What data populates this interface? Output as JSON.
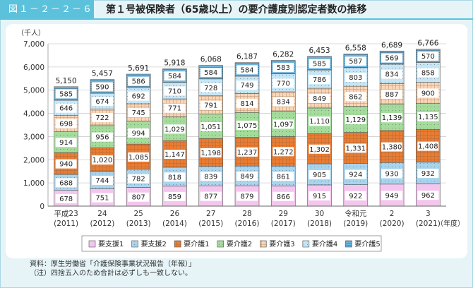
{
  "header": {
    "figure_number": "図１－２－２－６",
    "title": "第１号被保険者（65歳以上）の要介護度別認定者数の推移"
  },
  "chart_data": {
    "type": "bar",
    "stacked": true,
    "unit_label": "（千人）",
    "x_unit_label": "（年度）",
    "ylim": [
      0,
      7000
    ],
    "yticks": [
      "0",
      "1,000",
      "2,000",
      "3,000",
      "4,000",
      "5,000",
      "6,000",
      "7,000"
    ],
    "categories": [
      {
        "line1": "平成23",
        "line2": "(2011)"
      },
      {
        "line1": "24",
        "line2": "(2012)"
      },
      {
        "line1": "25",
        "line2": "(2013)"
      },
      {
        "line1": "26",
        "line2": "(2014)"
      },
      {
        "line1": "27",
        "line2": "(2015)"
      },
      {
        "line1": "28",
        "line2": "(2016)"
      },
      {
        "line1": "29",
        "line2": "(2017)"
      },
      {
        "line1": "30",
        "line2": "(2018)"
      },
      {
        "line1": "令和元",
        "line2": "(2019)"
      },
      {
        "line1": "2",
        "line2": "(2020)"
      },
      {
        "line1": "3",
        "line2": "(2021)"
      }
    ],
    "series": [
      {
        "name": "要支援1",
        "color": "#f4c6ee",
        "values": [
          678,
          751,
          807,
          859,
          877,
          879,
          866,
          915,
          922,
          949,
          962
        ]
      },
      {
        "name": "要支援2",
        "color": "#a8d4ee",
        "values": [
          688,
          744,
          782,
          818,
          839,
          849,
          861,
          905,
          924,
          930,
          932
        ]
      },
      {
        "name": "要介護1",
        "color": "#ea7c32",
        "values": [
          940,
          1020,
          1085,
          1147,
          1198,
          1237,
          1272,
          1302,
          1331,
          1380,
          1408
        ]
      },
      {
        "name": "要介護2",
        "color": "#a4dc9c",
        "values": [
          914,
          956,
          994,
          1029,
          1051,
          1075,
          1097,
          1110,
          1129,
          1139,
          1135
        ]
      },
      {
        "name": "要介護3",
        "color": "#fbd6b6",
        "values": [
          698,
          722,
          745,
          771,
          791,
          814,
          834,
          849,
          862,
          887,
          900
        ]
      },
      {
        "name": "要介護4",
        "color": "#c6e6f6",
        "values": [
          646,
          674,
          692,
          710,
          728,
          749,
          770,
          786,
          803,
          834,
          858
        ]
      },
      {
        "name": "要介護5",
        "color": "#6cb4dc",
        "values": [
          585,
          590,
          586,
          584,
          584,
          584,
          583,
          585,
          587,
          569,
          570
        ]
      }
    ],
    "totals": [
      5150,
      5457,
      5691,
      5918,
      6068,
      6187,
      6282,
      6453,
      6558,
      6689,
      6766
    ]
  },
  "notes": [
    "資料：厚生労働省「介護保険事業状況報告（年報）」",
    "（注）四捨五入のため合計は必ずしも一致しない。"
  ]
}
